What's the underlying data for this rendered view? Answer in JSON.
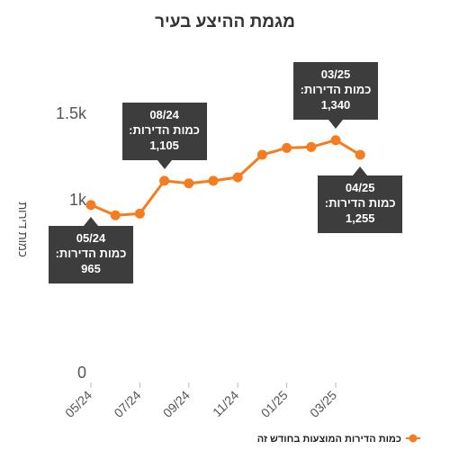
{
  "chart_data": {
    "type": "line",
    "title": "מגמת ההיצע בעיר",
    "ylabel": "כמות דירות",
    "xlabel": "",
    "ylim": [
      0,
      1600
    ],
    "y_ticks": [
      {
        "value": 0,
        "label": "0"
      },
      {
        "value": 1000,
        "label": "1k"
      },
      {
        "value": 1500,
        "label": "1.5k"
      }
    ],
    "categories": [
      "05/24",
      "06/24",
      "07/24",
      "08/24",
      "09/24",
      "10/24",
      "11/24",
      "12/24",
      "01/25",
      "02/25",
      "03/25",
      "04/25"
    ],
    "x_tick_labels": [
      "05/24",
      "07/24",
      "09/24",
      "11/24",
      "01/25",
      "03/25"
    ],
    "series": [
      {
        "name": "כמות הדירות המוצעות בחודש זה",
        "values": [
          965,
          905,
          915,
          1105,
          1090,
          1105,
          1125,
          1255,
          1295,
          1300,
          1340,
          1255
        ],
        "color": "#f57c1f"
      }
    ],
    "annotations": [
      {
        "index": 0,
        "date": "05/24",
        "label": "כמות הדירות:",
        "value": "965",
        "position": "below"
      },
      {
        "index": 3,
        "date": "08/24",
        "label": "כמות הדירות:",
        "value": "1,105",
        "position": "above"
      },
      {
        "index": 10,
        "date": "03/25",
        "label": "כמות הדירות:",
        "value": "1,340",
        "position": "above"
      },
      {
        "index": 11,
        "date": "04/25",
        "label": "כמות הדירות:",
        "value": "1,255",
        "position": "below"
      }
    ],
    "grid": false,
    "legend": "bottom-right"
  }
}
